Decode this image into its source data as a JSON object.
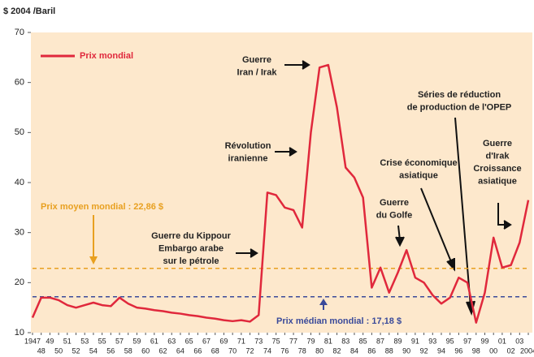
{
  "chart_data": {
    "type": "line",
    "y_axis_label": "$ 2004 /Baril",
    "categories": [
      "1947",
      "48",
      "49",
      "50",
      "51",
      "52",
      "53",
      "54",
      "55",
      "56",
      "57",
      "58",
      "59",
      "60",
      "61",
      "62",
      "63",
      "64",
      "65",
      "66",
      "67",
      "68",
      "69",
      "70",
      "71",
      "72",
      "73",
      "74",
      "75",
      "76",
      "77",
      "78",
      "79",
      "80",
      "81",
      "82",
      "83",
      "84",
      "85",
      "86",
      "87",
      "88",
      "89",
      "90",
      "91",
      "92",
      "93",
      "94",
      "95",
      "96",
      "97",
      "98",
      "99",
      "00",
      "01",
      "02",
      "03",
      "2004"
    ],
    "series": [
      {
        "name": "Prix mondial",
        "color": "#e0283c",
        "values": [
          13,
          17,
          17,
          16.5,
          15.5,
          15,
          15.5,
          16,
          15.5,
          15.3,
          17,
          15.8,
          15,
          14.8,
          14.5,
          14.3,
          14,
          13.8,
          13.5,
          13.3,
          13,
          12.8,
          12.5,
          12.3,
          12.5,
          12.2,
          13.5,
          38,
          37.5,
          35,
          34.5,
          31,
          50,
          63,
          63.5,
          55,
          43,
          41,
          37,
          19,
          23,
          18,
          22,
          26.5,
          21,
          20,
          17.5,
          15.8,
          17,
          21,
          20,
          12,
          18,
          29,
          23,
          23.5,
          28,
          36.5
        ]
      }
    ],
    "ylim": [
      10,
      70
    ],
    "yticks": [
      10,
      20,
      30,
      40,
      50,
      60,
      70
    ],
    "reference_lines": [
      {
        "label": "Prix moyen mondial : 22,86 $",
        "value": 22.86,
        "color": "#e8a020"
      },
      {
        "label": "Prix médian mondial : 17,18 $",
        "value": 17.18,
        "color": "#3a4a9a"
      }
    ],
    "annotations": [
      [
        "Guerre",
        "Iran / Irak"
      ],
      [
        "Révolution",
        "iranienne"
      ],
      [
        "Séries de réduction",
        "de production de l'OPEP"
      ],
      [
        "Crise économique",
        "asiatique"
      ],
      [
        "Guerre",
        "du Golfe"
      ],
      [
        "Guerre",
        "d'Irak",
        "Croissance",
        "asiatique"
      ],
      [
        "Guerre du Kippour",
        "Embargo arabe",
        "sur le pétrole"
      ]
    ]
  }
}
